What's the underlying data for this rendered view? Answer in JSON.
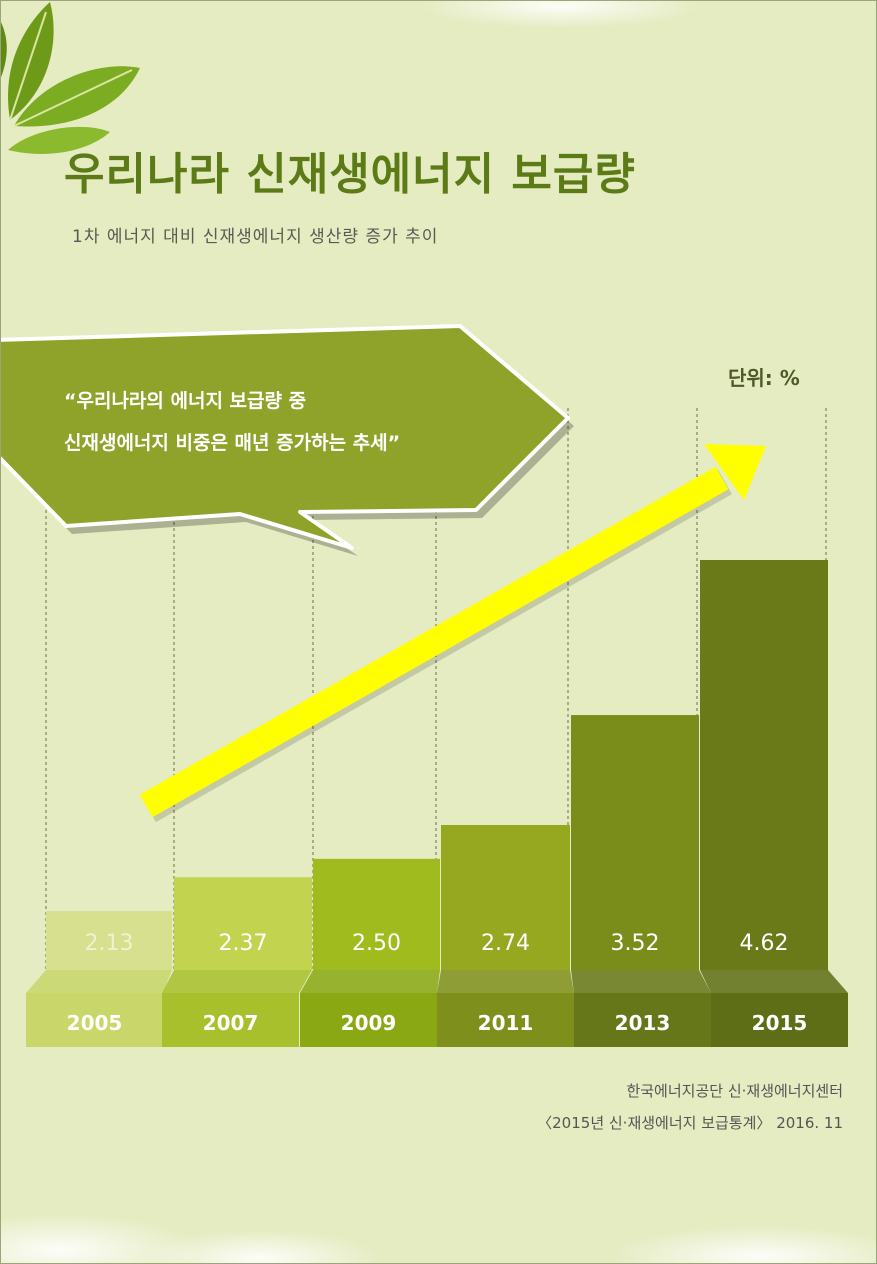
{
  "title": "우리나라 신재생에너지 보급량",
  "subtitle": "1차 에너지 대비 신재생에너지 생산량 증가 추이",
  "unit_label": "단위: %",
  "callout": {
    "line1": "“우리나라의 에너지 보급량 중",
    "line2": "신재생에너지 비중은 매년 증가하는 추세”"
  },
  "source": {
    "line1": "한국에너지공단 신·재생에너지센터",
    "line2": "〈2015년 신·재생에너지 보급통계〉 2016. 11"
  },
  "colors": {
    "background": "#e5ecc2",
    "title": "#5c7a16",
    "callout": "#8fa32a",
    "arrow": "#ffff00",
    "bars": [
      "#d6e08e",
      "#c2d44f",
      "#9fbb1d",
      "#96a720",
      "#7a8d1a",
      "#6a7a18"
    ],
    "year_tabs": [
      "#c8d66a",
      "#a8c02c",
      "#8aa814",
      "#7f8f1c",
      "#66771a",
      "#5e6e16"
    ]
  },
  "chart_data": {
    "type": "bar",
    "title": "우리나라 신재생에너지 보급량",
    "subtitle": "1차 에너지 대비 신재생에너지 생산량 증가 추이",
    "unit": "%",
    "categories": [
      "2005",
      "2007",
      "2009",
      "2011",
      "2013",
      "2015"
    ],
    "values": [
      2.13,
      2.37,
      2.5,
      2.74,
      3.52,
      4.62
    ],
    "value_labels": [
      "2.13",
      "2.37",
      "2.50",
      "2.74",
      "3.52",
      "4.62"
    ],
    "trend_arrow": true,
    "grid": false,
    "legend": "none"
  }
}
